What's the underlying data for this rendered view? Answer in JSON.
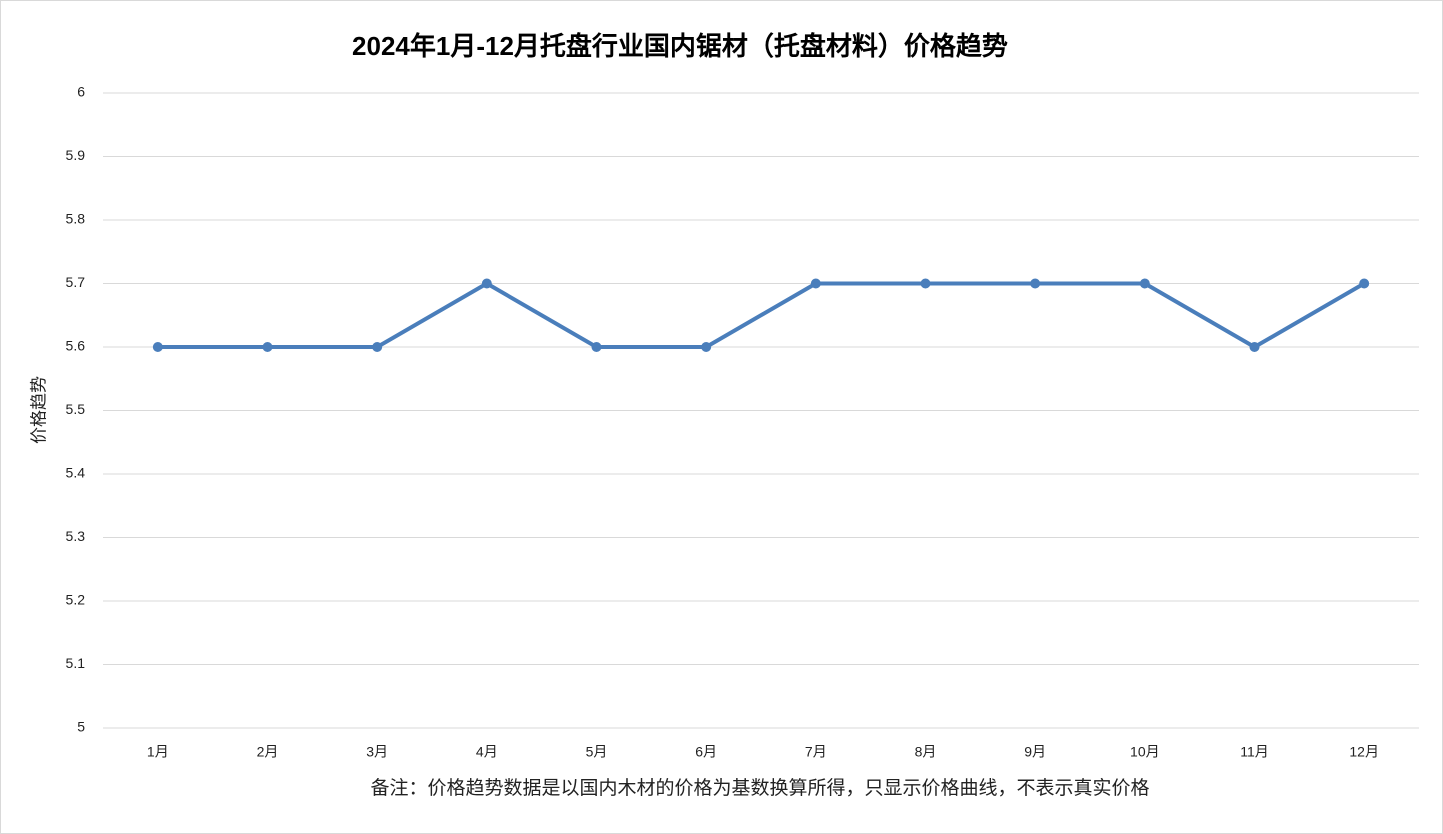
{
  "chart_data": {
    "type": "line",
    "title": "2024年1月-12月托盘行业国内锯材（托盘材料）价格趋势",
    "y_label": "价格趋势",
    "note": "备注：价格趋势数据是以国内木材的价格为基数换算所得，只显示价格曲线，不表示真实价格",
    "categories": [
      "1月",
      "2月",
      "3月",
      "4月",
      "5月",
      "6月",
      "7月",
      "8月",
      "9月",
      "10月",
      "11月",
      "12月"
    ],
    "values": [
      5.6,
      5.6,
      5.6,
      5.7,
      5.6,
      5.6,
      5.7,
      5.7,
      5.7,
      5.7,
      5.6,
      5.7
    ],
    "color": "#4a7ebb",
    "ylim": [
      5,
      6
    ],
    "yticks": [
      5,
      5.1,
      5.2,
      5.3,
      5.4,
      5.5,
      5.6,
      5.7,
      5.8,
      5.9,
      6
    ],
    "grid": true
  }
}
